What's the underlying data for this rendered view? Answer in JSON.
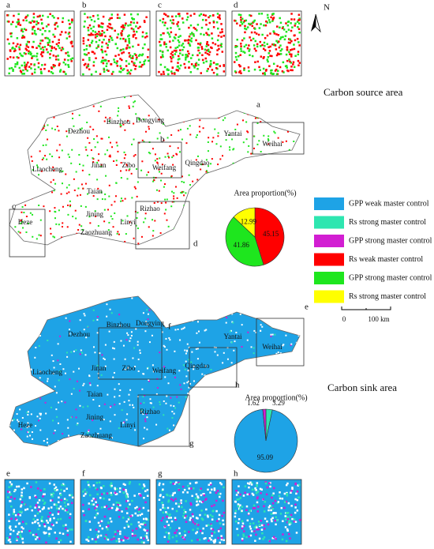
{
  "north": "N",
  "top_insets": [
    "a",
    "b",
    "c",
    "d"
  ],
  "bottom_insets": [
    "e",
    "f",
    "g",
    "h"
  ],
  "source_title": "Carbon source area",
  "sink_title": "Carbon sink area",
  "source_map": {
    "cities": [
      "Dezhou",
      "Binzhou",
      "Dongying",
      "Yantai",
      "Weihai",
      "Liaocheng",
      "Jinan",
      "Zibo",
      "Weifang",
      "Qingdao",
      "Taian",
      "Jining",
      "Linyi",
      "Rizhao",
      "Heze",
      "Zaozhuang"
    ],
    "inset_labels": [
      "a",
      "b",
      "c",
      "d"
    ]
  },
  "sink_map": {
    "cities": [
      "Dezhou",
      "Binzhou",
      "Dongying",
      "Yantai",
      "Weihai",
      "Liaocheng",
      "Jinan",
      "Zibo",
      "Weifang",
      "Qingdao",
      "Taian",
      "Jining",
      "Linyi",
      "Rizhao",
      "Heze",
      "Zaozhuang"
    ],
    "inset_labels": [
      "e",
      "f",
      "g",
      "h"
    ]
  },
  "legend": [
    {
      "label": "GPP weak master control",
      "color": "#1ea3e6"
    },
    {
      "label": "Rs strong master control",
      "color": "#2ee6b0"
    },
    {
      "label": "GPP strong master control",
      "color": "#d21ed2"
    },
    {
      "label": "Rs weak master control",
      "color": "#ff0000"
    },
    {
      "label": "GPP strong master control",
      "color": "#1ee61e"
    },
    {
      "label": "Rs strong master control",
      "color": "#ffff00"
    }
  ],
  "scale_bar": {
    "labels": [
      "0",
      "100 km"
    ]
  },
  "chart_data": [
    {
      "type": "pie",
      "title": "Area proportion(%)",
      "values": [
        45.15,
        41.86,
        12.99
      ],
      "colors": [
        "#ff0000",
        "#1ee61e",
        "#ffff00"
      ]
    },
    {
      "type": "pie",
      "title": "Area proportion(%)",
      "values": [
        3.29,
        95.09,
        1.62
      ],
      "colors": [
        "#2ee6b0",
        "#1ea3e6",
        "#d21ed2"
      ]
    }
  ]
}
